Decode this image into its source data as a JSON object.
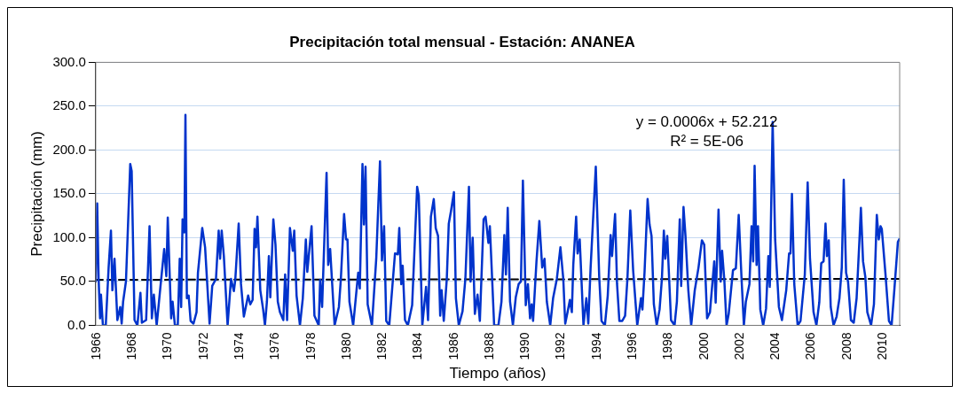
{
  "chart_data": {
    "type": "line",
    "title": "Precipitación total mensual - Estación: ANANEA",
    "xlabel": "Tiempo (años)",
    "ylabel": "Precipitación (mm)",
    "xlim": [
      1966,
      2011
    ],
    "xticks": [
      1966,
      1968,
      1970,
      1972,
      1974,
      1976,
      1978,
      1980,
      1982,
      1984,
      1986,
      1988,
      1990,
      1992,
      1994,
      1996,
      1998,
      2000,
      2002,
      2004,
      2006,
      2008,
      2010
    ],
    "ylim": [
      0,
      300
    ],
    "yticks": [
      {
        "value": 0,
        "label": "0.0"
      },
      {
        "value": 50,
        "label": "50.0"
      },
      {
        "value": 100,
        "label": "100.0"
      },
      {
        "value": 150,
        "label": "150.0"
      },
      {
        "value": 200,
        "label": "200.0"
      },
      {
        "value": 250,
        "label": "250.0"
      },
      {
        "value": 300,
        "label": "300.0"
      }
    ],
    "grid": "y",
    "legend": false,
    "marker": "none",
    "annotations": [
      "y = 0.0006x + 52.212",
      "R² = 5E-06"
    ],
    "series": [
      {
        "type": "line",
        "color": "#0033cc",
        "line_style": "solid",
        "x": [
          1966.0,
          1966.08,
          1966.16,
          1966.24,
          1966.29,
          1966.4,
          1966.56,
          1966.72,
          1966.85,
          1966.93,
          1967.05,
          1967.21,
          1967.37,
          1967.45,
          1967.53,
          1967.69,
          1967.93,
          1968.01,
          1968.17,
          1968.33,
          1968.5,
          1968.58,
          1968.82,
          1969.01,
          1969.14,
          1969.25,
          1969.41,
          1969.62,
          1969.83,
          1969.95,
          1970.03,
          1970.22,
          1970.3,
          1970.43,
          1970.59,
          1970.7,
          1970.78,
          1970.86,
          1970.96,
          1971.02,
          1971.1,
          1971.2,
          1971.31,
          1971.47,
          1971.64,
          1971.72,
          1971.96,
          1972.12,
          1972.37,
          1972.52,
          1972.73,
          1972.88,
          1972.96,
          1973.05,
          1973.17,
          1973.38,
          1973.57,
          1973.73,
          1973.81,
          1974.0,
          1974.13,
          1974.29,
          1974.53,
          1974.65,
          1974.78,
          1974.89,
          1974.97,
          1975.05,
          1975.21,
          1975.37,
          1975.47,
          1975.58,
          1975.69,
          1975.77,
          1975.94,
          1976.06,
          1976.19,
          1976.31,
          1976.5,
          1976.6,
          1976.71,
          1976.87,
          1977.03,
          1977.11,
          1977.24,
          1977.43,
          1977.59,
          1977.76,
          1977.84,
          1977.95,
          1978.08,
          1978.24,
          1978.48,
          1978.56,
          1978.67,
          1978.92,
          1979.01,
          1979.12,
          1979.37,
          1979.61,
          1979.72,
          1979.9,
          1980.01,
          1980.09,
          1980.2,
          1980.41,
          1980.69,
          1980.78,
          1980.93,
          1981.01,
          1981.1,
          1981.22,
          1981.46,
          1981.7,
          1981.91,
          1982.02,
          1982.14,
          1982.26,
          1982.43,
          1982.75,
          1982.91,
          1982.99,
          1983.1,
          1983.18,
          1983.31,
          1983.47,
          1983.71,
          1983.99,
          1984.08,
          1984.28,
          1984.49,
          1984.6,
          1984.76,
          1984.92,
          1985.03,
          1985.16,
          1985.28,
          1985.36,
          1985.48,
          1985.65,
          1985.76,
          1985.89,
          1986.05,
          1986.16,
          1986.32,
          1986.53,
          1986.69,
          1986.89,
          1986.98,
          1987.1,
          1987.22,
          1987.37,
          1987.5,
          1987.71,
          1987.82,
          1987.98,
          1988.06,
          1988.3,
          1988.54,
          1988.71,
          1988.87,
          1988.96,
          1989.06,
          1989.19,
          1989.35,
          1989.51,
          1989.67,
          1989.8,
          1989.91,
          1990.07,
          1990.19,
          1990.31,
          1990.4,
          1990.48,
          1990.67,
          1990.83,
          1990.99,
          1991.12,
          1991.25,
          1991.44,
          1991.6,
          1991.81,
          1992.01,
          1992.17,
          1992.28,
          1992.41,
          1992.54,
          1992.65,
          1992.73,
          1992.89,
          1992.97,
          1993.09,
          1993.3,
          1993.46,
          1993.57,
          1993.7,
          1993.99,
          1994.18,
          1994.31,
          1994.5,
          1994.66,
          1994.82,
          1994.9,
          1995.07,
          1995.18,
          1995.31,
          1995.47,
          1995.63,
          1995.76,
          1995.92,
          1996.08,
          1996.31,
          1996.52,
          1996.6,
          1996.72,
          1996.89,
          1997.0,
          1997.11,
          1997.24,
          1997.4,
          1997.56,
          1997.69,
          1997.8,
          1997.88,
          1997.99,
          1998.2,
          1998.4,
          1998.53,
          1998.69,
          1998.77,
          1998.9,
          1999.01,
          1999.17,
          1999.33,
          1999.53,
          1999.74,
          1999.93,
          2000.06,
          2000.22,
          2000.38,
          2000.62,
          2000.7,
          2000.86,
          2000.98,
          2001.06,
          2001.19,
          2001.31,
          2001.43,
          2001.67,
          2001.83,
          2001.99,
          2002.15,
          2002.28,
          2002.39,
          2002.59,
          2002.71,
          2002.8,
          2002.88,
          2002.99,
          2003.07,
          2003.2,
          2003.36,
          2003.52,
          2003.65,
          2003.73,
          2003.89,
          2004.03,
          2004.24,
          2004.41,
          2004.65,
          2004.81,
          2004.89,
          2004.97,
          2005.1,
          2005.29,
          2005.45,
          2005.69,
          2005.85,
          2005.98,
          2006.18,
          2006.34,
          2006.5,
          2006.61,
          2006.74,
          2006.85,
          2006.93,
          2007.03,
          2007.14,
          2007.3,
          2007.47,
          2007.63,
          2007.76,
          2007.87,
          2008.0,
          2008.11,
          2008.27,
          2008.43,
          2008.59,
          2008.75,
          2008.83,
          2008.95,
          2009.08,
          2009.19,
          2009.4,
          2009.56,
          2009.72,
          2009.83,
          2009.93,
          2010.0,
          2010.2,
          2010.4,
          2010.55,
          2010.7,
          2010.9,
          2010.97
        ],
        "values": [
          50,
          139,
          53,
          8,
          35,
          0,
          0,
          66,
          108,
          40,
          76,
          6,
          21,
          2,
          27,
          50,
          184,
          176,
          6,
          0,
          37,
          3,
          6,
          113,
          8,
          35,
          0,
          44,
          87,
          56,
          123,
          8,
          27,
          0,
          0,
          76,
          21,
          121,
          106,
          240,
          31,
          34,
          5,
          2,
          15,
          60,
          111,
          89,
          2,
          45,
          53,
          108,
          76,
          108,
          79,
          0,
          53,
          39,
          52,
          116,
          47,
          10,
          34,
          24,
          29,
          110,
          89,
          124,
          40,
          18,
          0,
          27,
          79,
          32,
          121,
          92,
          27,
          15,
          6,
          58,
          6,
          111,
          85,
          108,
          34,
          0,
          31,
          98,
          61,
          85,
          113,
          11,
          0,
          52,
          21,
          174,
          69,
          87,
          0,
          21,
          53,
          127,
          98,
          98,
          27,
          0,
          60,
          42,
          184,
          115,
          181,
          24,
          0,
          76,
          187,
          74,
          113,
          5,
          0,
          82,
          81,
          111,
          47,
          68,
          6,
          0,
          23,
          158,
          148,
          0,
          44,
          6,
          124,
          144,
          111,
          102,
          11,
          40,
          5,
          53,
          116,
          131,
          152,
          31,
          0,
          16,
          53,
          158,
          50,
          100,
          13,
          35,
          5,
          121,
          124,
          94,
          113,
          0,
          0,
          27,
          103,
          58,
          134,
          27,
          0,
          32,
          47,
          50,
          165,
          23,
          47,
          8,
          24,
          5,
          73,
          119,
          66,
          76,
          27,
          0,
          31,
          53,
          89,
          53,
          2,
          15,
          29,
          15,
          69,
          124,
          82,
          98,
          0,
          31,
          2,
          66,
          181,
          56,
          5,
          0,
          34,
          103,
          79,
          127,
          47,
          5,
          5,
          11,
          53,
          131,
          63,
          0,
          31,
          18,
          61,
          144,
          115,
          102,
          24,
          0,
          18,
          53,
          108,
          76,
          102,
          6,
          0,
          27,
          121,
          45,
          135,
          102,
          40,
          0,
          40,
          66,
          97,
          92,
          8,
          15,
          73,
          26,
          132,
          50,
          85,
          50,
          0,
          13,
          63,
          65,
          126,
          53,
          0,
          27,
          47,
          113,
          73,
          182,
          69,
          113,
          18,
          0,
          19,
          79,
          44,
          232,
          98,
          21,
          6,
          40,
          82,
          82,
          150,
          47,
          0,
          5,
          58,
          163,
          76,
          15,
          0,
          26,
          71,
          73,
          116,
          79,
          97,
          21,
          0,
          10,
          31,
          66,
          166,
          60,
          50,
          6,
          3,
          31,
          98,
          134,
          73,
          55,
          15,
          0,
          24,
          126,
          98,
          113,
          110,
          60,
          5,
          0,
          40,
          95,
          98
        ]
      },
      {
        "type": "line",
        "color": "#000000",
        "line_style": "dashed",
        "x": [
          1966,
          2011
        ],
        "values": [
          52,
          53
        ]
      }
    ]
  }
}
